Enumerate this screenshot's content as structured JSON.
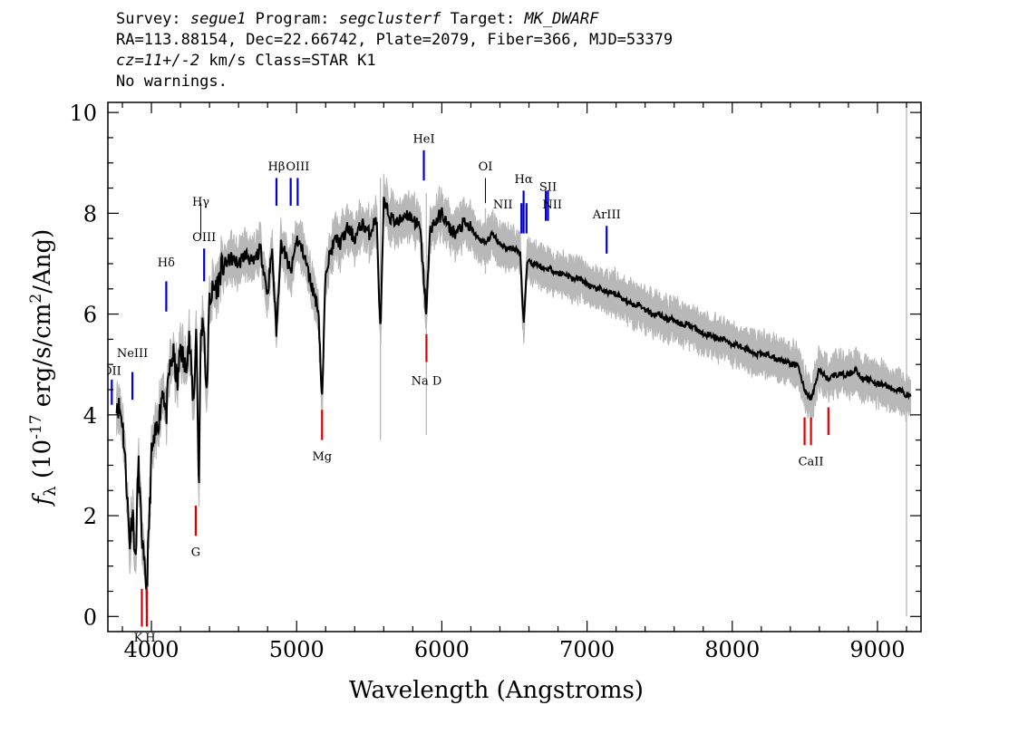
{
  "header": {
    "survey_label": "Survey:",
    "survey": "segue1",
    "program_label": "Program:",
    "program": "segclusterf",
    "target_label": "Target:",
    "target": "MK_DWARF",
    "line2": "RA=113.88154, Dec=22.66742, Plate=2079, Fiber=366, MJD=53379",
    "cz": "cz=11+/-2",
    "line3_rest": " km/s Class=STAR K1",
    "line4": "No warnings."
  },
  "colors": {
    "flux": "#000000",
    "error": "#b8b8b8",
    "emission": "#0000cc",
    "absorption": "#dd0000",
    "sky": "#000000"
  },
  "chart_data": {
    "type": "line",
    "title": "",
    "xlabel": "Wavelength (Angstroms)",
    "ylabel": "f_λ (10^-17 erg/s/cm^2/Ang)",
    "xlim": [
      3700,
      9300
    ],
    "ylim": [
      -0.3,
      10.2
    ],
    "x_ticks": [
      4000,
      5000,
      6000,
      7000,
      8000,
      9000
    ],
    "y_ticks": [
      0,
      2,
      4,
      6,
      8,
      10
    ],
    "grid": false,
    "series": [
      {
        "role": "flux",
        "x": [
          3760,
          3800,
          3830,
          3850,
          3870,
          3890,
          3910,
          3930,
          3950,
          3968,
          3985,
          4000,
          4030,
          4060,
          4080,
          4101,
          4120,
          4150,
          4180,
          4200,
          4230,
          4260,
          4290,
          4310,
          4326,
          4340,
          4360,
          4380,
          4400,
          4430,
          4460,
          4480,
          4510,
          4550,
          4600,
          4650,
          4700,
          4750,
          4800,
          4830,
          4861,
          4890,
          4920,
          4960,
          5000,
          5050,
          5100,
          5150,
          5175,
          5200,
          5230,
          5270,
          5300,
          5350,
          5400,
          5450,
          5500,
          5550,
          5577,
          5600,
          5650,
          5700,
          5750,
          5800,
          5850,
          5893,
          5920,
          5950,
          6000,
          6050,
          6100,
          6150,
          6200,
          6250,
          6300,
          6350,
          6400,
          6450,
          6500,
          6540,
          6563,
          6590,
          6620,
          6650,
          6700,
          6750,
          6800,
          6850,
          6900,
          6950,
          7000,
          7050,
          7100,
          7150,
          7200,
          7250,
          7300,
          7350,
          7400,
          7450,
          7500,
          7550,
          7600,
          7650,
          7700,
          7750,
          7800,
          7850,
          7900,
          7950,
          8000,
          8050,
          8100,
          8150,
          8200,
          8250,
          8300,
          8350,
          8400,
          8450,
          8498,
          8542,
          8600,
          8662,
          8700,
          8750,
          8800,
          8850,
          8900,
          8950,
          9000,
          9050,
          9100,
          9150,
          9200,
          9230
        ],
        "y": [
          4.3,
          3.9,
          2.6,
          1.4,
          2.2,
          1.0,
          3.1,
          1.8,
          0.9,
          0.6,
          1.9,
          3.2,
          3.6,
          4.1,
          4.6,
          3.9,
          4.8,
          5.2,
          4.6,
          5.4,
          4.9,
          5.5,
          4.2,
          5.8,
          2.4,
          5.6,
          5.9,
          4.3,
          6.3,
          6.5,
          6.6,
          6.9,
          7.0,
          7.1,
          7.0,
          7.2,
          7.0,
          7.3,
          6.4,
          7.3,
          5.6,
          7.4,
          7.2,
          6.8,
          7.5,
          7.2,
          6.6,
          6.1,
          4.2,
          6.9,
          7.2,
          7.5,
          7.4,
          7.7,
          7.5,
          7.8,
          7.6,
          7.9,
          5.6,
          8.2,
          7.9,
          7.8,
          8.0,
          7.9,
          7.7,
          6.0,
          7.7,
          7.8,
          8.0,
          7.7,
          7.6,
          7.8,
          7.7,
          7.5,
          7.4,
          7.6,
          7.4,
          7.3,
          7.3,
          7.2,
          5.8,
          7.1,
          7.0,
          7.0,
          6.9,
          6.9,
          6.8,
          6.8,
          6.7,
          6.7,
          6.6,
          6.5,
          6.5,
          6.4,
          6.4,
          6.3,
          6.2,
          6.2,
          6.1,
          6.0,
          6.0,
          5.9,
          5.9,
          5.8,
          5.8,
          5.7,
          5.6,
          5.6,
          5.5,
          5.5,
          5.4,
          5.4,
          5.3,
          5.2,
          5.2,
          5.2,
          5.1,
          5.1,
          5.0,
          5.0,
          4.5,
          4.3,
          4.9,
          4.7,
          4.8,
          4.8,
          4.8,
          4.9,
          4.7,
          4.7,
          4.6,
          4.6,
          4.5,
          4.5,
          4.4,
          4.4
        ]
      }
    ],
    "error_band": 0.35,
    "sky_residuals": [
      {
        "x": 5577,
        "low": 3.5,
        "high": 8.7
      },
      {
        "x": 5893,
        "low": 3.6,
        "high": 8.4
      },
      {
        "x": 6300,
        "low": 6.8,
        "high": 8.1
      },
      {
        "x": 9200,
        "low": 0.0,
        "high": 10.2
      }
    ],
    "lines": [
      {
        "label": "OII",
        "x": 3727,
        "y0": 4.2,
        "y1": 4.7,
        "type": "emission",
        "label_y": 4.8
      },
      {
        "label": "NeIII",
        "x": 3869,
        "y0": 4.3,
        "y1": 4.85,
        "type": "emission",
        "label_y": 5.15
      },
      {
        "label": "Hδ",
        "x": 4102,
        "y0": 6.05,
        "y1": 6.65,
        "type": "emission",
        "label_y": 6.95
      },
      {
        "label": "Hγ",
        "x": 4340,
        "y0": 7.5,
        "y1": 8.2,
        "type": "sky",
        "label_y": 8.15
      },
      {
        "label": "OIII",
        "x": 4363,
        "y0": 6.65,
        "y1": 7.3,
        "type": "emission",
        "label_y": 7.45
      },
      {
        "label": "Hβ",
        "x": 4861,
        "y0": 8.15,
        "y1": 8.7,
        "type": "emission",
        "label_y": 8.85
      },
      {
        "label": "OIII",
        "x": 4959,
        "y0": 8.15,
        "y1": 8.7,
        "type": "emission",
        "label_y": -1
      },
      {
        "label": "OIII",
        "x": 5007,
        "y0": 8.15,
        "y1": 8.7,
        "type": "emission",
        "label_y": 8.85
      },
      {
        "label": "HeI",
        "x": 5876,
        "y0": 8.65,
        "y1": 9.25,
        "type": "emission",
        "label_y": 9.4
      },
      {
        "label": "OI",
        "x": 6300,
        "y0": 8.2,
        "y1": 8.7,
        "type": "sky",
        "label_y": 8.85
      },
      {
        "label": "NII",
        "x": 6548,
        "y0": 7.6,
        "y1": 8.2,
        "type": "emission",
        "label_y": -1
      },
      {
        "label": "Hα",
        "x": 6563,
        "y0": 7.6,
        "y1": 8.45,
        "type": "emission",
        "label_y": 8.6
      },
      {
        "label": "NII",
        "x": 6583,
        "y0": 7.6,
        "y1": 8.2,
        "type": "emission",
        "label_y": -1
      },
      {
        "label": "SII",
        "x": 6716,
        "y0": 7.85,
        "y1": 8.45,
        "type": "emission",
        "label_y": -1
      },
      {
        "label": "SII",
        "x": 6731,
        "y0": 7.85,
        "y1": 8.45,
        "type": "emission",
        "label_y": 8.45
      },
      {
        "label": "ArIII",
        "x": 7135,
        "y0": 7.2,
        "y1": 7.75,
        "type": "emission",
        "label_y": 7.9
      },
      {
        "label": "K",
        "x": 3934,
        "y0": -0.2,
        "y1": 0.55,
        "type": "absorption",
        "label_y": -0.5
      },
      {
        "label": "H",
        "x": 3968,
        "y0": -0.2,
        "y1": 0.55,
        "type": "absorption",
        "label_y": -0.5
      },
      {
        "label": "G",
        "x": 4305,
        "y0": 1.6,
        "y1": 2.2,
        "type": "absorption",
        "label_y": 1.2
      },
      {
        "label": "Mg",
        "x": 5175,
        "y0": 3.5,
        "y1": 4.1,
        "type": "absorption",
        "label_y": 3.1
      },
      {
        "label": "Na D",
        "x": 5894,
        "y0": 5.05,
        "y1": 5.6,
        "type": "absorption",
        "label_y": 4.6
      },
      {
        "label": "CaII",
        "x": 8498,
        "y0": 3.4,
        "y1": 3.95,
        "type": "absorption",
        "label_y": -1
      },
      {
        "label": "CaII",
        "x": 8542,
        "y0": 3.4,
        "y1": 3.95,
        "type": "absorption",
        "label_y": 3.0
      },
      {
        "label": "CaII",
        "x": 8662,
        "y0": 3.6,
        "y1": 4.15,
        "type": "absorption",
        "label_y": -1
      }
    ],
    "nii_labels": [
      {
        "label": "NII",
        "x": 6420,
        "label_y": 8.1
      },
      {
        "label": "NII",
        "x": 6760,
        "label_y": 8.1
      }
    ]
  }
}
